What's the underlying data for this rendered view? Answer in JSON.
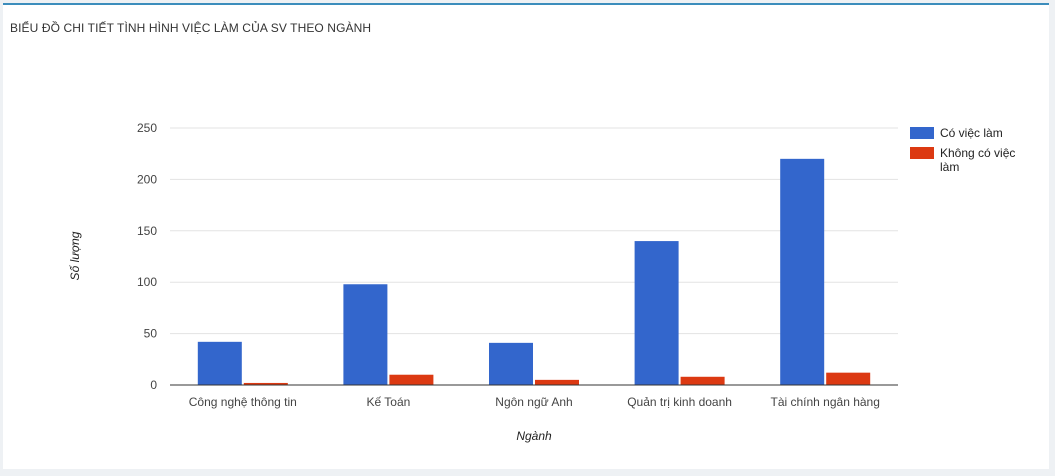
{
  "panel": {
    "title": "BIỂU ĐỒ CHI TIẾT TÌNH HÌNH VIỆC LÀM CỦA SV THEO NGÀNH"
  },
  "chart_data": {
    "type": "bar",
    "title": "",
    "xlabel": "Ngành",
    "ylabel": "Số lượng",
    "categories": [
      "Công nghệ thông tin",
      "Kế Toán",
      "Ngôn ngữ Anh",
      "Quản trị kinh doanh",
      "Tài chính ngân hàng"
    ],
    "series": [
      {
        "name": "Có việc làm",
        "values": [
          42,
          98,
          41,
          140,
          220
        ],
        "color": "#3366cc"
      },
      {
        "name": "Không có việc làm",
        "values": [
          2,
          10,
          5,
          8,
          12
        ],
        "color": "#dc3912"
      }
    ],
    "ylim": [
      0,
      250
    ],
    "yticks": [
      0,
      50,
      100,
      150,
      200,
      250
    ],
    "grid": true,
    "legend_position": "right"
  }
}
